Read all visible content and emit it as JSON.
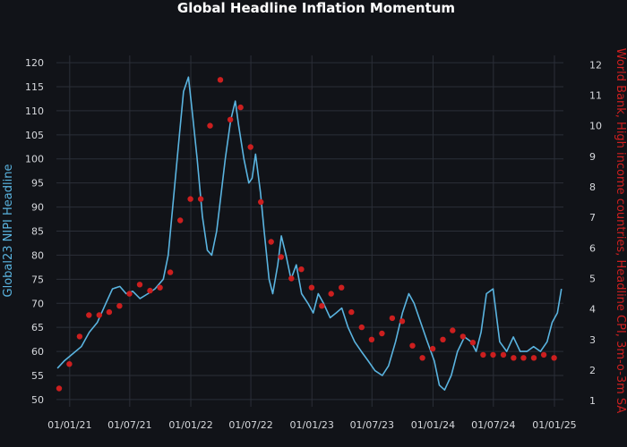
{
  "chart_data": {
    "type": "line",
    "title": "Global Headline Inflation Momentum",
    "ylabel_left": "Global23 NIPI Headline",
    "ylabel_right": "World Bank, High income countries, Headline CPI, 3m-o-3m SA",
    "x_tick_labels": [
      "01/01/21",
      "01/07/21",
      "01/01/22",
      "01/07/22",
      "01/01/23",
      "01/07/23",
      "01/01/24",
      "01/07/24",
      "01/01/25"
    ],
    "y_left_ticks": [
      50,
      55,
      60,
      65,
      70,
      75,
      80,
      85,
      90,
      95,
      100,
      105,
      110,
      115,
      120
    ],
    "y_right_ticks": [
      1,
      2,
      3,
      4,
      5,
      6,
      7,
      8,
      9,
      10,
      11,
      12
    ],
    "ylim_left": [
      48.5,
      121.5
    ],
    "ylim_right": [
      0.8,
      12.3
    ],
    "grid": true,
    "colors": {
      "line": "#5ab4e0",
      "dots": "#cc1f1f",
      "right_axis": "#cc1f1f",
      "background": "#111318"
    },
    "series": [
      {
        "name": "Global23 NIPI Headline",
        "axis": "left",
        "render": "line",
        "x": [
          "2020-11-25",
          "2020-12-15",
          "2021-01-10",
          "2021-02-05",
          "2021-03-01",
          "2021-03-25",
          "2021-04-20",
          "2021-05-10",
          "2021-06-01",
          "2021-06-20",
          "2021-07-10",
          "2021-08-01",
          "2021-08-25",
          "2021-09-15",
          "2021-10-10",
          "2021-10-25",
          "2021-11-10",
          "2021-11-25",
          "2021-12-10",
          "2021-12-25",
          "2022-01-05",
          "2022-01-20",
          "2022-02-05",
          "2022-02-20",
          "2022-03-05",
          "2022-03-20",
          "2022-04-01",
          "2022-04-15",
          "2022-05-01",
          "2022-05-15",
          "2022-05-25",
          "2022-06-10",
          "2022-06-25",
          "2022-07-05",
          "2022-07-15",
          "2022-07-30",
          "2022-08-10",
          "2022-08-25",
          "2022-09-05",
          "2022-09-20",
          "2022-10-01",
          "2022-10-15",
          "2022-10-30",
          "2022-11-15",
          "2022-12-01",
          "2022-12-20",
          "2023-01-05",
          "2023-01-20",
          "2023-02-05",
          "2023-02-25",
          "2023-03-15",
          "2023-04-01",
          "2023-04-20",
          "2023-05-10",
          "2023-05-30",
          "2023-06-20",
          "2023-07-10",
          "2023-08-01",
          "2023-08-20",
          "2023-09-10",
          "2023-10-01",
          "2023-10-20",
          "2023-11-05",
          "2023-11-25",
          "2023-12-15",
          "2024-01-05",
          "2024-01-20",
          "2024-02-05",
          "2024-02-25",
          "2024-03-15",
          "2024-04-05",
          "2024-04-25",
          "2024-05-10",
          "2024-05-25",
          "2024-06-10",
          "2024-06-30",
          "2024-07-20",
          "2024-08-10",
          "2024-08-30",
          "2024-09-20",
          "2024-10-10",
          "2024-10-30",
          "2024-11-20",
          "2024-12-10",
          "2024-12-25",
          "2025-01-10",
          "2025-01-22"
        ],
        "values": [
          56.5,
          58,
          59.5,
          61,
          64,
          66,
          70,
          73,
          73.5,
          72,
          72.5,
          71,
          72,
          73,
          75,
          80,
          92,
          103,
          114,
          117,
          110,
          100,
          88,
          81,
          80,
          85,
          92,
          100,
          108,
          112,
          107,
          100,
          95,
          96,
          101,
          93,
          85,
          75,
          72,
          78,
          84,
          80,
          75,
          78,
          72,
          70,
          68,
          72,
          70,
          67,
          68,
          69,
          65,
          62,
          60,
          58,
          56,
          55,
          57,
          62,
          68,
          72,
          70,
          66,
          62,
          58,
          53,
          52,
          55,
          60,
          63,
          62,
          60,
          64,
          72,
          73,
          62,
          60,
          63,
          60,
          60,
          61,
          60,
          62,
          66,
          68,
          73
        ]
      },
      {
        "name": "World Bank, High income countries, Headline CPI, 3m-o-3m SA",
        "axis": "right",
        "render": "markers",
        "x": [
          "2020-11-30",
          "2020-12-31",
          "2021-01-31",
          "2021-02-28",
          "2021-03-31",
          "2021-04-30",
          "2021-05-31",
          "2021-06-30",
          "2021-07-31",
          "2021-08-31",
          "2021-09-30",
          "2021-10-31",
          "2021-11-30",
          "2021-12-31",
          "2022-01-31",
          "2022-02-28",
          "2022-03-31",
          "2022-04-30",
          "2022-05-31",
          "2022-06-30",
          "2022-07-31",
          "2022-08-31",
          "2022-09-30",
          "2022-10-31",
          "2022-11-30",
          "2022-12-31",
          "2023-01-31",
          "2023-02-28",
          "2023-03-31",
          "2023-04-30",
          "2023-05-31",
          "2023-06-30",
          "2023-07-31",
          "2023-08-31",
          "2023-09-30",
          "2023-10-31",
          "2023-11-30",
          "2023-12-31",
          "2024-01-31",
          "2024-02-29",
          "2024-03-31",
          "2024-04-30",
          "2024-05-31",
          "2024-06-30",
          "2024-07-31",
          "2024-08-31",
          "2024-09-30",
          "2024-10-31",
          "2024-11-30",
          "2024-12-31"
        ],
        "values": [
          1.4,
          2.2,
          3.1,
          3.8,
          3.8,
          3.9,
          4.1,
          4.5,
          4.8,
          4.6,
          4.7,
          5.2,
          6.9,
          7.6,
          7.6,
          10.0,
          11.5,
          10.2,
          10.6,
          9.3,
          7.5,
          6.2,
          5.7,
          5.0,
          5.3,
          4.7,
          4.1,
          4.5,
          4.7,
          3.9,
          3.4,
          3.0,
          3.2,
          3.7,
          3.6,
          2.8,
          2.4,
          2.7,
          3.0,
          3.3,
          3.1,
          2.9,
          2.5,
          2.5,
          2.5,
          2.4,
          2.4,
          2.4,
          2.5,
          2.4
        ]
      }
    ]
  }
}
